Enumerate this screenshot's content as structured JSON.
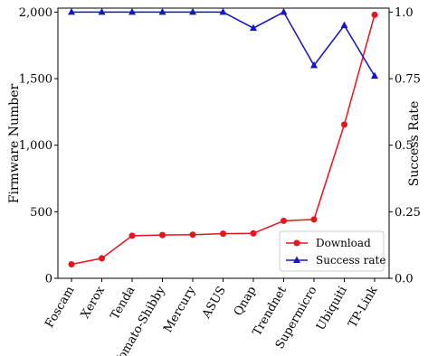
{
  "chart_data": {
    "type": "line",
    "categories": [
      "Foscam",
      "Xerox",
      "Tenda",
      "Tomato-Shibby",
      "Mercury",
      "ASUS",
      "Qnap",
      "Trendnet",
      "Supermicro",
      "Ubiquiti",
      "TP-Link"
    ],
    "series": [
      {
        "name": "Download",
        "axis": "left",
        "color": "#e8141c",
        "marker": "circle",
        "values": [
          105,
          150,
          320,
          325,
          328,
          335,
          338,
          432,
          442,
          1155,
          1980
        ]
      },
      {
        "name": "Success rate",
        "axis": "right",
        "color": "#1414c8",
        "marker": "triangle",
        "values": [
          1.0,
          1.0,
          1.0,
          1.0,
          1.0,
          1.0,
          0.94,
          1.0,
          0.8,
          0.95,
          0.76
        ]
      }
    ],
    "ylabel": "Firmware Number",
    "ylabel_right": "Success Rate",
    "ylim": [
      0,
      2030
    ],
    "ylim_right": [
      0,
      1.015
    ],
    "yticks": [
      0,
      500,
      1000,
      1500,
      2000
    ],
    "ytick_labels": [
      "0",
      "500",
      "1,000",
      "1,500",
      "2,000"
    ],
    "yticks_right": [
      0,
      0.25,
      0.5,
      0.75,
      1.0
    ],
    "ytick_labels_right": [
      "0.0",
      "0.25",
      "0.5",
      "0.75",
      "1.0"
    ],
    "legend": "bottom-right",
    "grid": false
  }
}
